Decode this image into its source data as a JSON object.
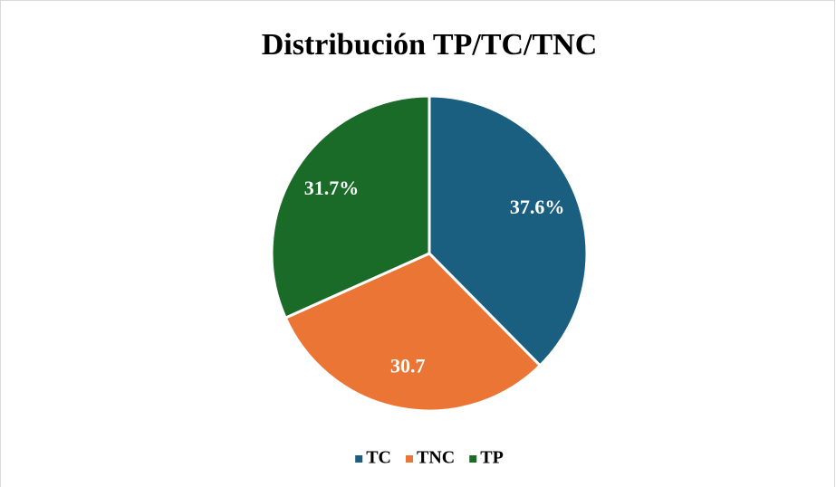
{
  "chart_data": {
    "type": "pie",
    "title": "Distribución TP/TC/TNC",
    "categories": [
      "TC",
      "TNC",
      "TP"
    ],
    "values": [
      37.6,
      30.7,
      31.7
    ],
    "value_labels": [
      "37.6%",
      "30.7",
      "31.7%"
    ],
    "colors": [
      "#1a5e80",
      "#eb7535",
      "#1a6b28"
    ],
    "legend": "bottom"
  }
}
